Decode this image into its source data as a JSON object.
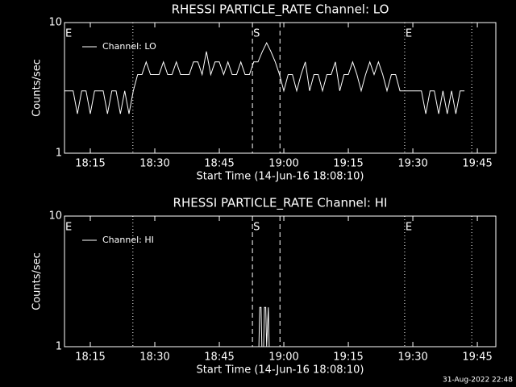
{
  "chart_data": [
    {
      "type": "line",
      "title": "RHESSI PARTICLE_RATE Channel: LO",
      "xlabel": "Start Time (14-Jun-16 18:08:10)",
      "ylabel": "Counts/sec",
      "log_y": true,
      "legend": "upper left",
      "xlim": [
        1089,
        1189.3
      ],
      "ylim": [
        1,
        10
      ],
      "yticks": [
        1,
        10
      ],
      "xticks": [
        {
          "value": 1095,
          "label": "18:15"
        },
        {
          "value": 1110,
          "label": "18:30"
        },
        {
          "value": 1125,
          "label": "18:45"
        },
        {
          "value": 1140,
          "label": "19:00"
        },
        {
          "value": 1155,
          "label": "19:15"
        },
        {
          "value": 1170,
          "label": "19:30"
        },
        {
          "value": 1185,
          "label": "19:45"
        }
      ],
      "vlines": [
        {
          "x": 1104.9,
          "style": "dotted"
        },
        {
          "x": 1132.7,
          "style": "dashed"
        },
        {
          "x": 1139.1,
          "style": "dashed"
        },
        {
          "x": 1168.1,
          "style": "dotted"
        },
        {
          "x": 1183.7,
          "style": "dotted"
        }
      ],
      "annotations": [
        {
          "text": "E",
          "x": 1089
        },
        {
          "text": "S",
          "x": 1132.7
        },
        {
          "text": "E",
          "x": 1168.1
        }
      ],
      "series": [
        {
          "name": "Channel: LO",
          "color": "#ffffff",
          "x": [
            1089,
            1090,
            1091,
            1092,
            1093,
            1094,
            1095,
            1096,
            1097,
            1098,
            1099,
            1100,
            1101,
            1102,
            1103,
            1104,
            1105,
            1106,
            1107,
            1108,
            1109,
            1110,
            1111,
            1112,
            1113,
            1114,
            1115,
            1116,
            1117,
            1118,
            1119,
            1120,
            1121,
            1122,
            1123,
            1124,
            1125,
            1126,
            1127,
            1128,
            1129,
            1130,
            1131,
            1132,
            1133,
            1134,
            1135,
            1136,
            1137,
            1138,
            1139,
            1140,
            1141,
            1142,
            1143,
            1144,
            1145,
            1146,
            1147,
            1148,
            1149,
            1150,
            1151,
            1152,
            1153,
            1154,
            1155,
            1156,
            1157,
            1158,
            1159,
            1160,
            1161,
            1162,
            1163,
            1164,
            1165,
            1166,
            1167,
            1168,
            1169,
            1170,
            1171,
            1172,
            1173,
            1174,
            1175,
            1176,
            1177,
            1178,
            1179,
            1180,
            1181,
            1182
          ],
          "values": [
            3,
            3,
            3,
            2,
            3,
            3,
            2,
            3,
            3,
            3,
            2,
            3,
            3,
            2,
            3,
            2,
            3,
            4,
            4,
            5,
            4,
            4,
            4,
            5,
            4,
            4,
            5,
            4,
            4,
            4,
            5,
            5,
            4,
            6,
            4,
            5,
            5,
            4,
            5,
            4,
            4,
            5,
            4,
            4,
            5,
            5,
            6,
            7,
            6,
            5,
            4,
            3,
            4,
            4,
            3,
            4,
            5,
            3,
            4,
            4,
            3,
            4,
            4,
            5,
            3,
            4,
            4,
            5,
            4,
            3,
            4,
            5,
            4,
            5,
            4,
            3,
            4,
            4,
            3,
            3,
            3,
            3,
            3,
            3,
            2,
            3,
            3,
            2,
            3,
            2,
            3,
            2,
            3,
            3
          ]
        }
      ]
    },
    {
      "type": "line",
      "title": "RHESSI PARTICLE_RATE Channel: HI",
      "xlabel": "Start Time (14-Jun-16 18:08:10)",
      "ylabel": "Counts/sec",
      "log_y": true,
      "legend": "upper left",
      "xlim": [
        1089,
        1189.3
      ],
      "ylim": [
        1,
        10
      ],
      "yticks": [
        1,
        10
      ],
      "xticks": [
        {
          "value": 1095,
          "label": "18:15"
        },
        {
          "value": 1110,
          "label": "18:30"
        },
        {
          "value": 1125,
          "label": "18:45"
        },
        {
          "value": 1140,
          "label": "19:00"
        },
        {
          "value": 1155,
          "label": "19:15"
        },
        {
          "value": 1170,
          "label": "19:30"
        },
        {
          "value": 1185,
          "label": "19:45"
        }
      ],
      "vlines": [
        {
          "x": 1104.9,
          "style": "dotted"
        },
        {
          "x": 1132.7,
          "style": "dashed"
        },
        {
          "x": 1139.1,
          "style": "dashed"
        },
        {
          "x": 1168.1,
          "style": "dotted"
        },
        {
          "x": 1183.7,
          "style": "dotted"
        }
      ],
      "annotations": [
        {
          "text": "E",
          "x": 1089
        },
        {
          "text": "S",
          "x": 1132.7
        },
        {
          "text": "E",
          "x": 1168.1
        }
      ],
      "series": [
        {
          "name": "Channel: HI",
          "color": "#ffffff",
          "x": [
            1134.2,
            1134.4,
            1134.7,
            1134.9,
            1135.3,
            1135.5,
            1135.8,
            1136.0,
            1136.4,
            1136.6
          ],
          "values": [
            1,
            2,
            2,
            1,
            1,
            2,
            2,
            1,
            2,
            1
          ]
        }
      ]
    }
  ],
  "footer": "31-Aug-2022 22:48"
}
